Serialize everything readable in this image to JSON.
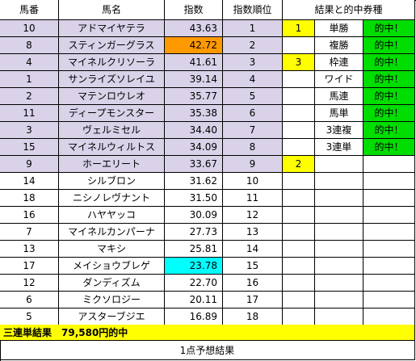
{
  "headers": [
    "馬番",
    "馬名",
    "指数",
    "指数順位",
    "結果と的中券種"
  ],
  "rows": [
    {
      "num": "10",
      "name": "アドマイヤテラ",
      "index": "43.63",
      "rank": "1",
      "res": "1",
      "bet": "単勝",
      "hit": "的中！"
    },
    {
      "num": "8",
      "name": "スティンガーグラス",
      "index": "42.72",
      "rank": "2",
      "res": "",
      "bet": "複勝",
      "hit": "的中！"
    },
    {
      "num": "4",
      "name": "マイネルクリソーラ",
      "index": "41.61",
      "rank": "3",
      "res": "3",
      "bet": "枠連",
      "hit": "的中！"
    },
    {
      "num": "1",
      "name": "サンライズソレイユ",
      "index": "39.14",
      "rank": "4",
      "res": "",
      "bet": "ワイド",
      "hit": "的中！"
    },
    {
      "num": "2",
      "name": "マテンロウレオ",
      "index": "35.77",
      "rank": "5",
      "res": "",
      "bet": "馬連",
      "hit": "的中！"
    },
    {
      "num": "11",
      "name": "ディープモンスター",
      "index": "35.38",
      "rank": "6",
      "res": "",
      "bet": "馬単",
      "hit": "的中！"
    },
    {
      "num": "3",
      "name": "ヴェルミセル",
      "index": "34.40",
      "rank": "7",
      "res": "",
      "bet": "3連複",
      "hit": "的中！"
    },
    {
      "num": "15",
      "name": "マイネルウィルトス",
      "index": "34.09",
      "rank": "8",
      "res": "",
      "bet": "3連単",
      "hit": "的中！"
    },
    {
      "num": "9",
      "name": "ホーエリート",
      "index": "33.67",
      "rank": "9",
      "res": "2",
      "bet": "",
      "hit": ""
    },
    {
      "num": "14",
      "name": "シルブロン",
      "index": "31.62",
      "rank": "10",
      "res": "",
      "bet": "",
      "hit": ""
    },
    {
      "num": "18",
      "name": "ニシノレヴナント",
      "index": "31.50",
      "rank": "11",
      "res": "",
      "bet": "",
      "hit": ""
    },
    {
      "num": "16",
      "name": "ハヤヤッコ",
      "index": "30.09",
      "rank": "12",
      "res": "",
      "bet": "",
      "hit": ""
    },
    {
      "num": "7",
      "name": "マイネルカンパーナ",
      "index": "27.73",
      "rank": "13",
      "res": "",
      "bet": "",
      "hit": ""
    },
    {
      "num": "13",
      "name": "マキシ",
      "index": "25.81",
      "rank": "14",
      "res": "",
      "bet": "",
      "hit": ""
    },
    {
      "num": "17",
      "name": "メイショウブレゲ",
      "index": "23.78",
      "rank": "15",
      "res": "",
      "bet": "",
      "hit": ""
    },
    {
      "num": "12",
      "name": "ダンディズム",
      "index": "22.70",
      "rank": "16",
      "res": "",
      "bet": "",
      "hit": ""
    },
    {
      "num": "6",
      "name": "ミクソロジー",
      "index": "20.11",
      "rank": "17",
      "res": "",
      "bet": "",
      "hit": ""
    },
    {
      "num": "5",
      "name": "アスターブジエ",
      "index": "16.89",
      "rank": "18",
      "res": "",
      "bet": "",
      "hit": ""
    }
  ],
  "summary": "三連単結果　79,580円的中",
  "footer": "1点予想結果",
  "colors": {
    "top_rows": "#d9d2e9",
    "orange": "#ff9900",
    "cyan": "#00ffff",
    "yellow": "#ffff00",
    "green": "#00dd00",
    "white": "#ffffff"
  }
}
